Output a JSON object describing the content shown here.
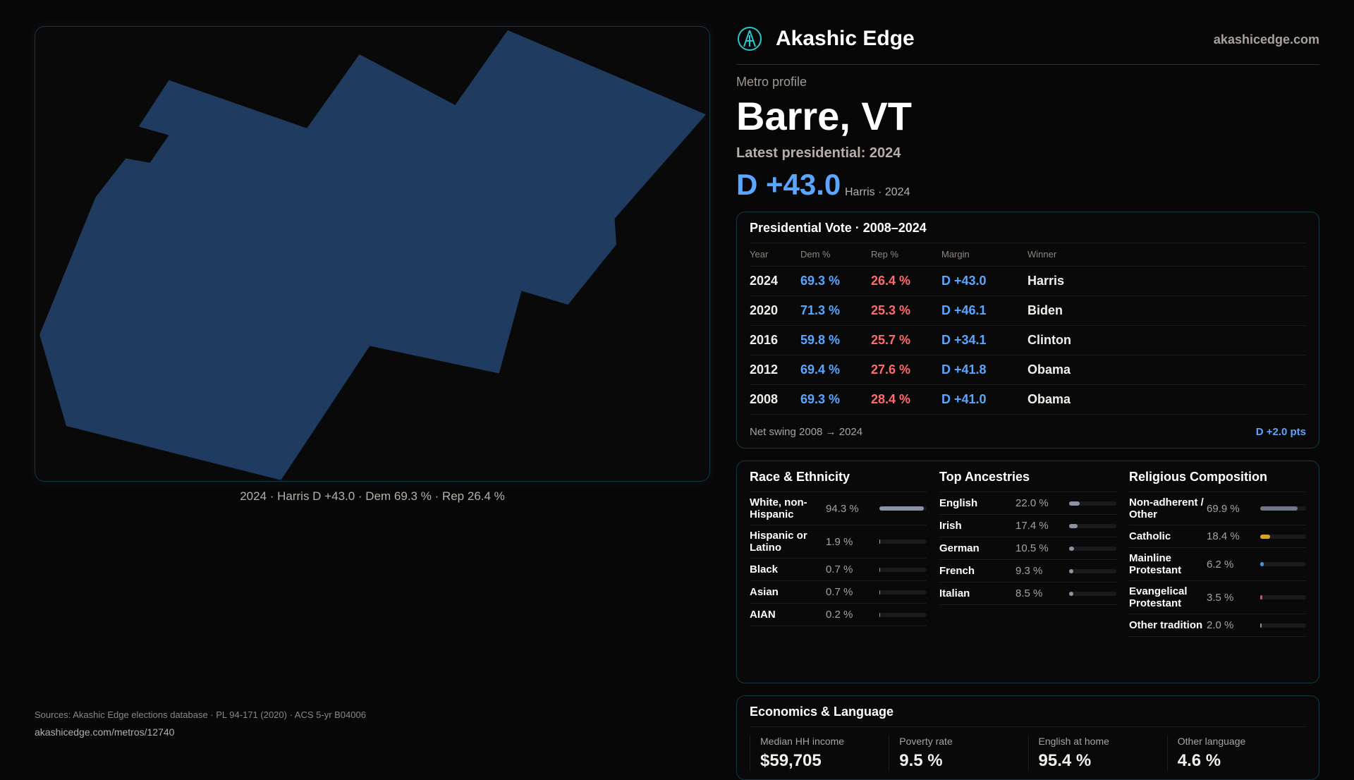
{
  "map": {
    "fill": "#1f3b5f",
    "caption": "2024 · Harris D +43.0 · Dem 69.3 % · Rep 26.4 %"
  },
  "header": {
    "brand": "Akashic Edge",
    "site": "akashicedge.com",
    "logo_icon": "compass-emblem-icon"
  },
  "profile": {
    "kicker": "Metro profile",
    "title": "Barre, VT",
    "latest": "Latest presidential: 2024",
    "margin": "D +43.0",
    "margin_sub": "Harris · 2024"
  },
  "vote": {
    "title": "Presidential Vote · 2008–2024",
    "headers": [
      "Year",
      "Dem %",
      "Rep %",
      "Margin",
      "Winner"
    ],
    "rows": [
      [
        "2024",
        "69.3 %",
        "26.4 %",
        "D +43.0",
        "Harris"
      ],
      [
        "2020",
        "71.3 %",
        "25.3 %",
        "D +46.1",
        "Biden"
      ],
      [
        "2016",
        "59.8 %",
        "25.7 %",
        "D +34.1",
        "Clinton"
      ],
      [
        "2012",
        "69.4 %",
        "27.6 %",
        "D +41.8",
        "Obama"
      ],
      [
        "2008",
        "69.3 %",
        "28.4 %",
        "D +41.0",
        "Obama"
      ]
    ],
    "swing_label": "Net swing 2008 → 2024",
    "swing_value": "D +2.0 pts"
  },
  "race": {
    "title": "Race & Ethnicity",
    "items": [
      {
        "label": "White, non-Hispanic",
        "pct": "94.3 %",
        "value": 94.3,
        "color": "#8a94a6"
      },
      {
        "label": "Hispanic or Latino",
        "pct": "1.9 %",
        "value": 1.9,
        "color": "#e0a030"
      },
      {
        "label": "Black",
        "pct": "0.7 %",
        "value": 0.7,
        "color": "#8a94a6"
      },
      {
        "label": "Asian",
        "pct": "0.7 %",
        "value": 0.7,
        "color": "#8a94a6"
      },
      {
        "label": "AIAN",
        "pct": "0.2 %",
        "value": 0.2,
        "color": "#8a94a6"
      }
    ]
  },
  "ancestry": {
    "title": "Top Ancestries",
    "items": [
      {
        "label": "English",
        "pct": "22.0 %",
        "value": 22.0
      },
      {
        "label": "Irish",
        "pct": "17.4 %",
        "value": 17.4
      },
      {
        "label": "German",
        "pct": "10.5 %",
        "value": 10.5
      },
      {
        "label": "French",
        "pct": "9.3 %",
        "value": 9.3
      },
      {
        "label": "Italian",
        "pct": "8.5 %",
        "value": 8.5
      }
    ],
    "color": "#8a94a6"
  },
  "religion": {
    "title": "Religious Composition",
    "items": [
      {
        "label": "Non-adherent / Other",
        "pct": "69.9 %",
        "value": 69.9,
        "color": "#6f7788"
      },
      {
        "label": "Catholic",
        "pct": "18.4 %",
        "value": 18.4,
        "color": "#d9a520"
      },
      {
        "label": "Mainline Protestant",
        "pct": "6.2 %",
        "value": 6.2,
        "color": "#4a8ff0"
      },
      {
        "label": "Evangelical Protestant",
        "pct": "3.5 %",
        "value": 3.5,
        "color": "#e05050"
      },
      {
        "label": "Other tradition",
        "pct": "2.0 %",
        "value": 2.0,
        "color": "#8a94a6"
      }
    ]
  },
  "econ": {
    "title": "Economics & Language",
    "stats": [
      {
        "label": "Median HH income",
        "value": "$59,705"
      },
      {
        "label": "Poverty rate",
        "value": "9.5 %"
      },
      {
        "label": "English at home",
        "value": "95.4 %"
      },
      {
        "label": "Other language",
        "value": "4.6 %"
      }
    ]
  },
  "footer": {
    "sources": "Sources: Akashic Edge elections database · PL 94-171 (2020) · ACS 5-yr B04006",
    "url": "akashicedge.com/metros/12740"
  }
}
